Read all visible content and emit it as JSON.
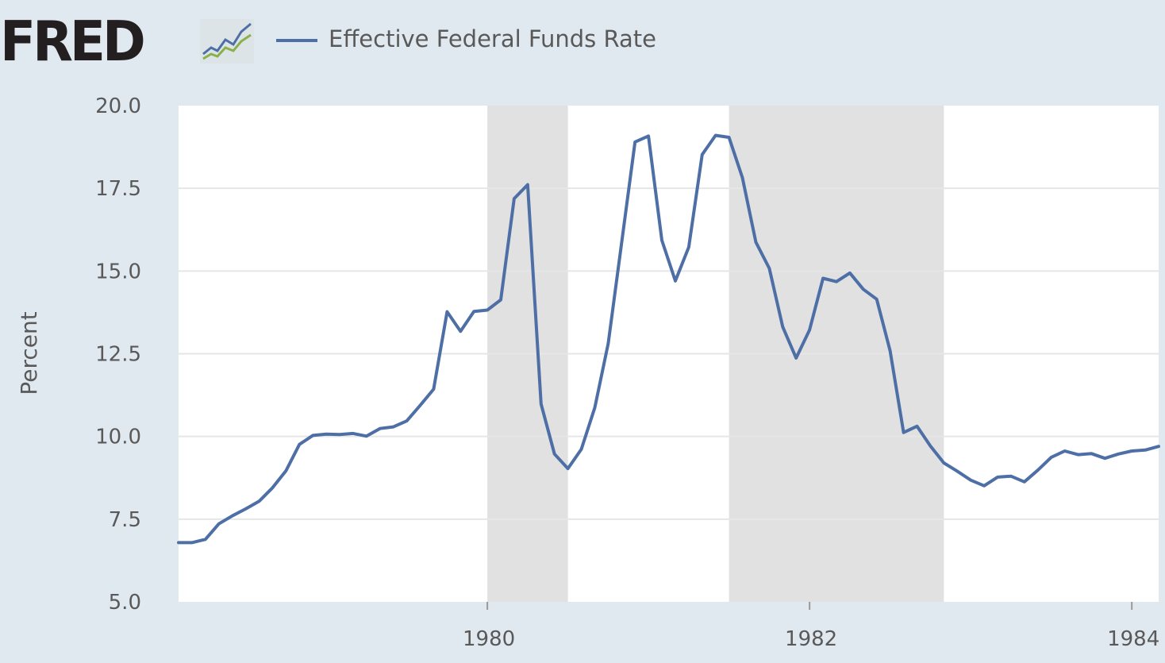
{
  "logo": {
    "text": "FRED",
    "icon": "trend-lines-icon"
  },
  "colors": {
    "background": "#e1e9f0",
    "plot": "#ffffff",
    "series": "#4e6fa5",
    "recession": "#e1e1e1",
    "grid": "#e6e6e6",
    "text": "#595959"
  },
  "chart_data": {
    "type": "line",
    "title": "",
    "xlabel": "",
    "ylabel": "Percent",
    "ylim": [
      5.0,
      20.0
    ],
    "xlim": [
      "1978-02",
      "1984-03"
    ],
    "yticks": [
      "5.0",
      "7.5",
      "10.0",
      "12.5",
      "15.0",
      "17.5",
      "20.0"
    ],
    "xticks": [
      {
        "label": "1980",
        "date": "1980-01"
      },
      {
        "label": "1982",
        "date": "1982-01"
      },
      {
        "label": "1984",
        "date": "1984-01"
      }
    ],
    "grid": true,
    "legend": "top-left",
    "recessions": [
      {
        "start": "1980-01",
        "end": "1980-07"
      },
      {
        "start": "1981-07",
        "end": "1982-11"
      }
    ],
    "series": [
      {
        "name": "Effective Federal Funds Rate",
        "x": [
          "1978-02",
          "1978-03",
          "1978-04",
          "1978-05",
          "1978-06",
          "1978-07",
          "1978-08",
          "1978-09",
          "1978-10",
          "1978-11",
          "1978-12",
          "1979-01",
          "1979-02",
          "1979-03",
          "1979-04",
          "1979-05",
          "1979-06",
          "1979-07",
          "1979-08",
          "1979-09",
          "1979-10",
          "1979-11",
          "1979-12",
          "1980-01",
          "1980-02",
          "1980-03",
          "1980-04",
          "1980-05",
          "1980-06",
          "1980-07",
          "1980-08",
          "1980-09",
          "1980-10",
          "1980-11",
          "1980-12",
          "1981-01",
          "1981-02",
          "1981-03",
          "1981-04",
          "1981-05",
          "1981-06",
          "1981-07",
          "1981-08",
          "1981-09",
          "1981-10",
          "1981-11",
          "1981-12",
          "1982-01",
          "1982-02",
          "1982-03",
          "1982-04",
          "1982-05",
          "1982-06",
          "1982-07",
          "1982-08",
          "1982-09",
          "1982-10",
          "1982-11",
          "1982-12",
          "1983-01",
          "1983-02",
          "1983-03",
          "1983-04",
          "1983-05",
          "1983-06",
          "1983-07",
          "1983-08",
          "1983-09",
          "1983-10",
          "1983-11",
          "1983-12",
          "1984-01",
          "1984-02",
          "1984-03"
        ],
        "values": [
          6.79,
          6.79,
          6.89,
          7.36,
          7.6,
          7.81,
          8.04,
          8.45,
          8.96,
          9.76,
          10.03,
          10.07,
          10.06,
          10.09,
          10.01,
          10.24,
          10.29,
          10.47,
          10.94,
          11.43,
          13.77,
          13.18,
          13.78,
          13.82,
          14.13,
          17.19,
          17.61,
          10.98,
          9.47,
          9.03,
          9.61,
          10.87,
          12.81,
          15.85,
          18.9,
          19.08,
          15.93,
          14.7,
          15.72,
          18.52,
          19.1,
          19.04,
          17.82,
          15.87,
          15.08,
          13.31,
          12.37,
          13.22,
          14.78,
          14.68,
          14.94,
          14.45,
          14.15,
          12.59,
          10.12,
          10.31,
          9.71,
          9.2,
          8.95,
          8.68,
          8.51,
          8.77,
          8.8,
          8.63,
          8.98,
          9.37,
          9.56,
          9.45,
          9.48,
          9.34,
          9.47,
          9.56,
          9.59,
          9.7
        ]
      }
    ]
  }
}
